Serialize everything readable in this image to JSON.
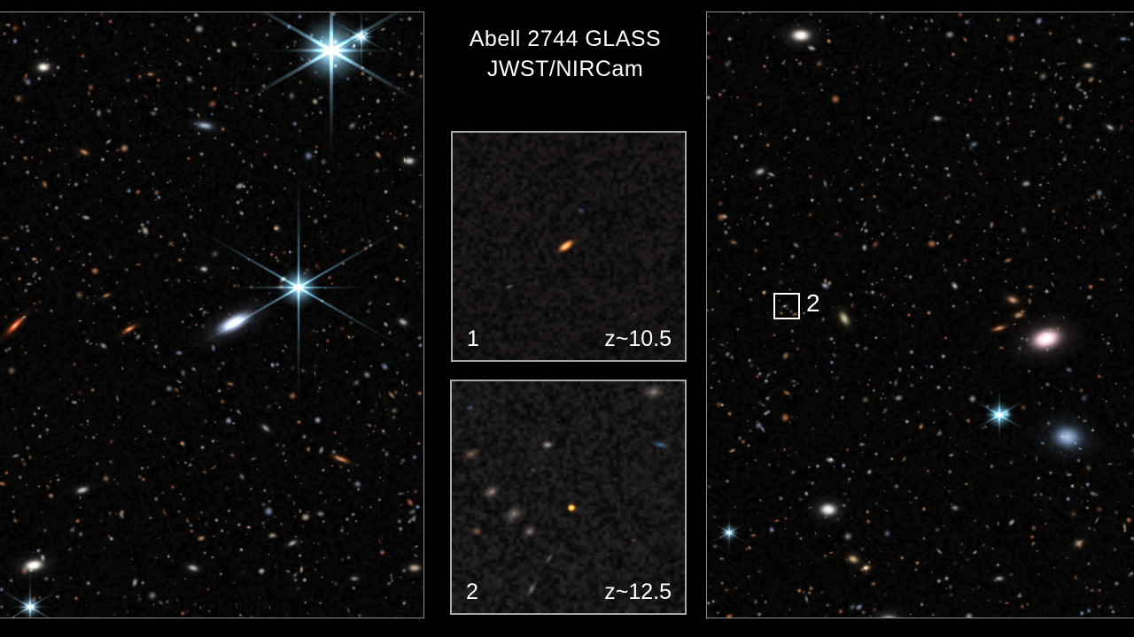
{
  "figure": {
    "title_line1": "Abell 2744 GLASS",
    "title_line2": "JWST/NIRCam"
  },
  "insets": [
    {
      "number": "1",
      "redshift": "z~10.5"
    },
    {
      "number": "2",
      "redshift": "z~12.5"
    }
  ],
  "right_panel": {
    "marker_label": "2"
  },
  "colors": {
    "background": "#000000",
    "panel_border": "#8d8d8d",
    "inset_border": "#a8a8a8",
    "marker_border": "#ffffff",
    "text": "#ffffff"
  }
}
